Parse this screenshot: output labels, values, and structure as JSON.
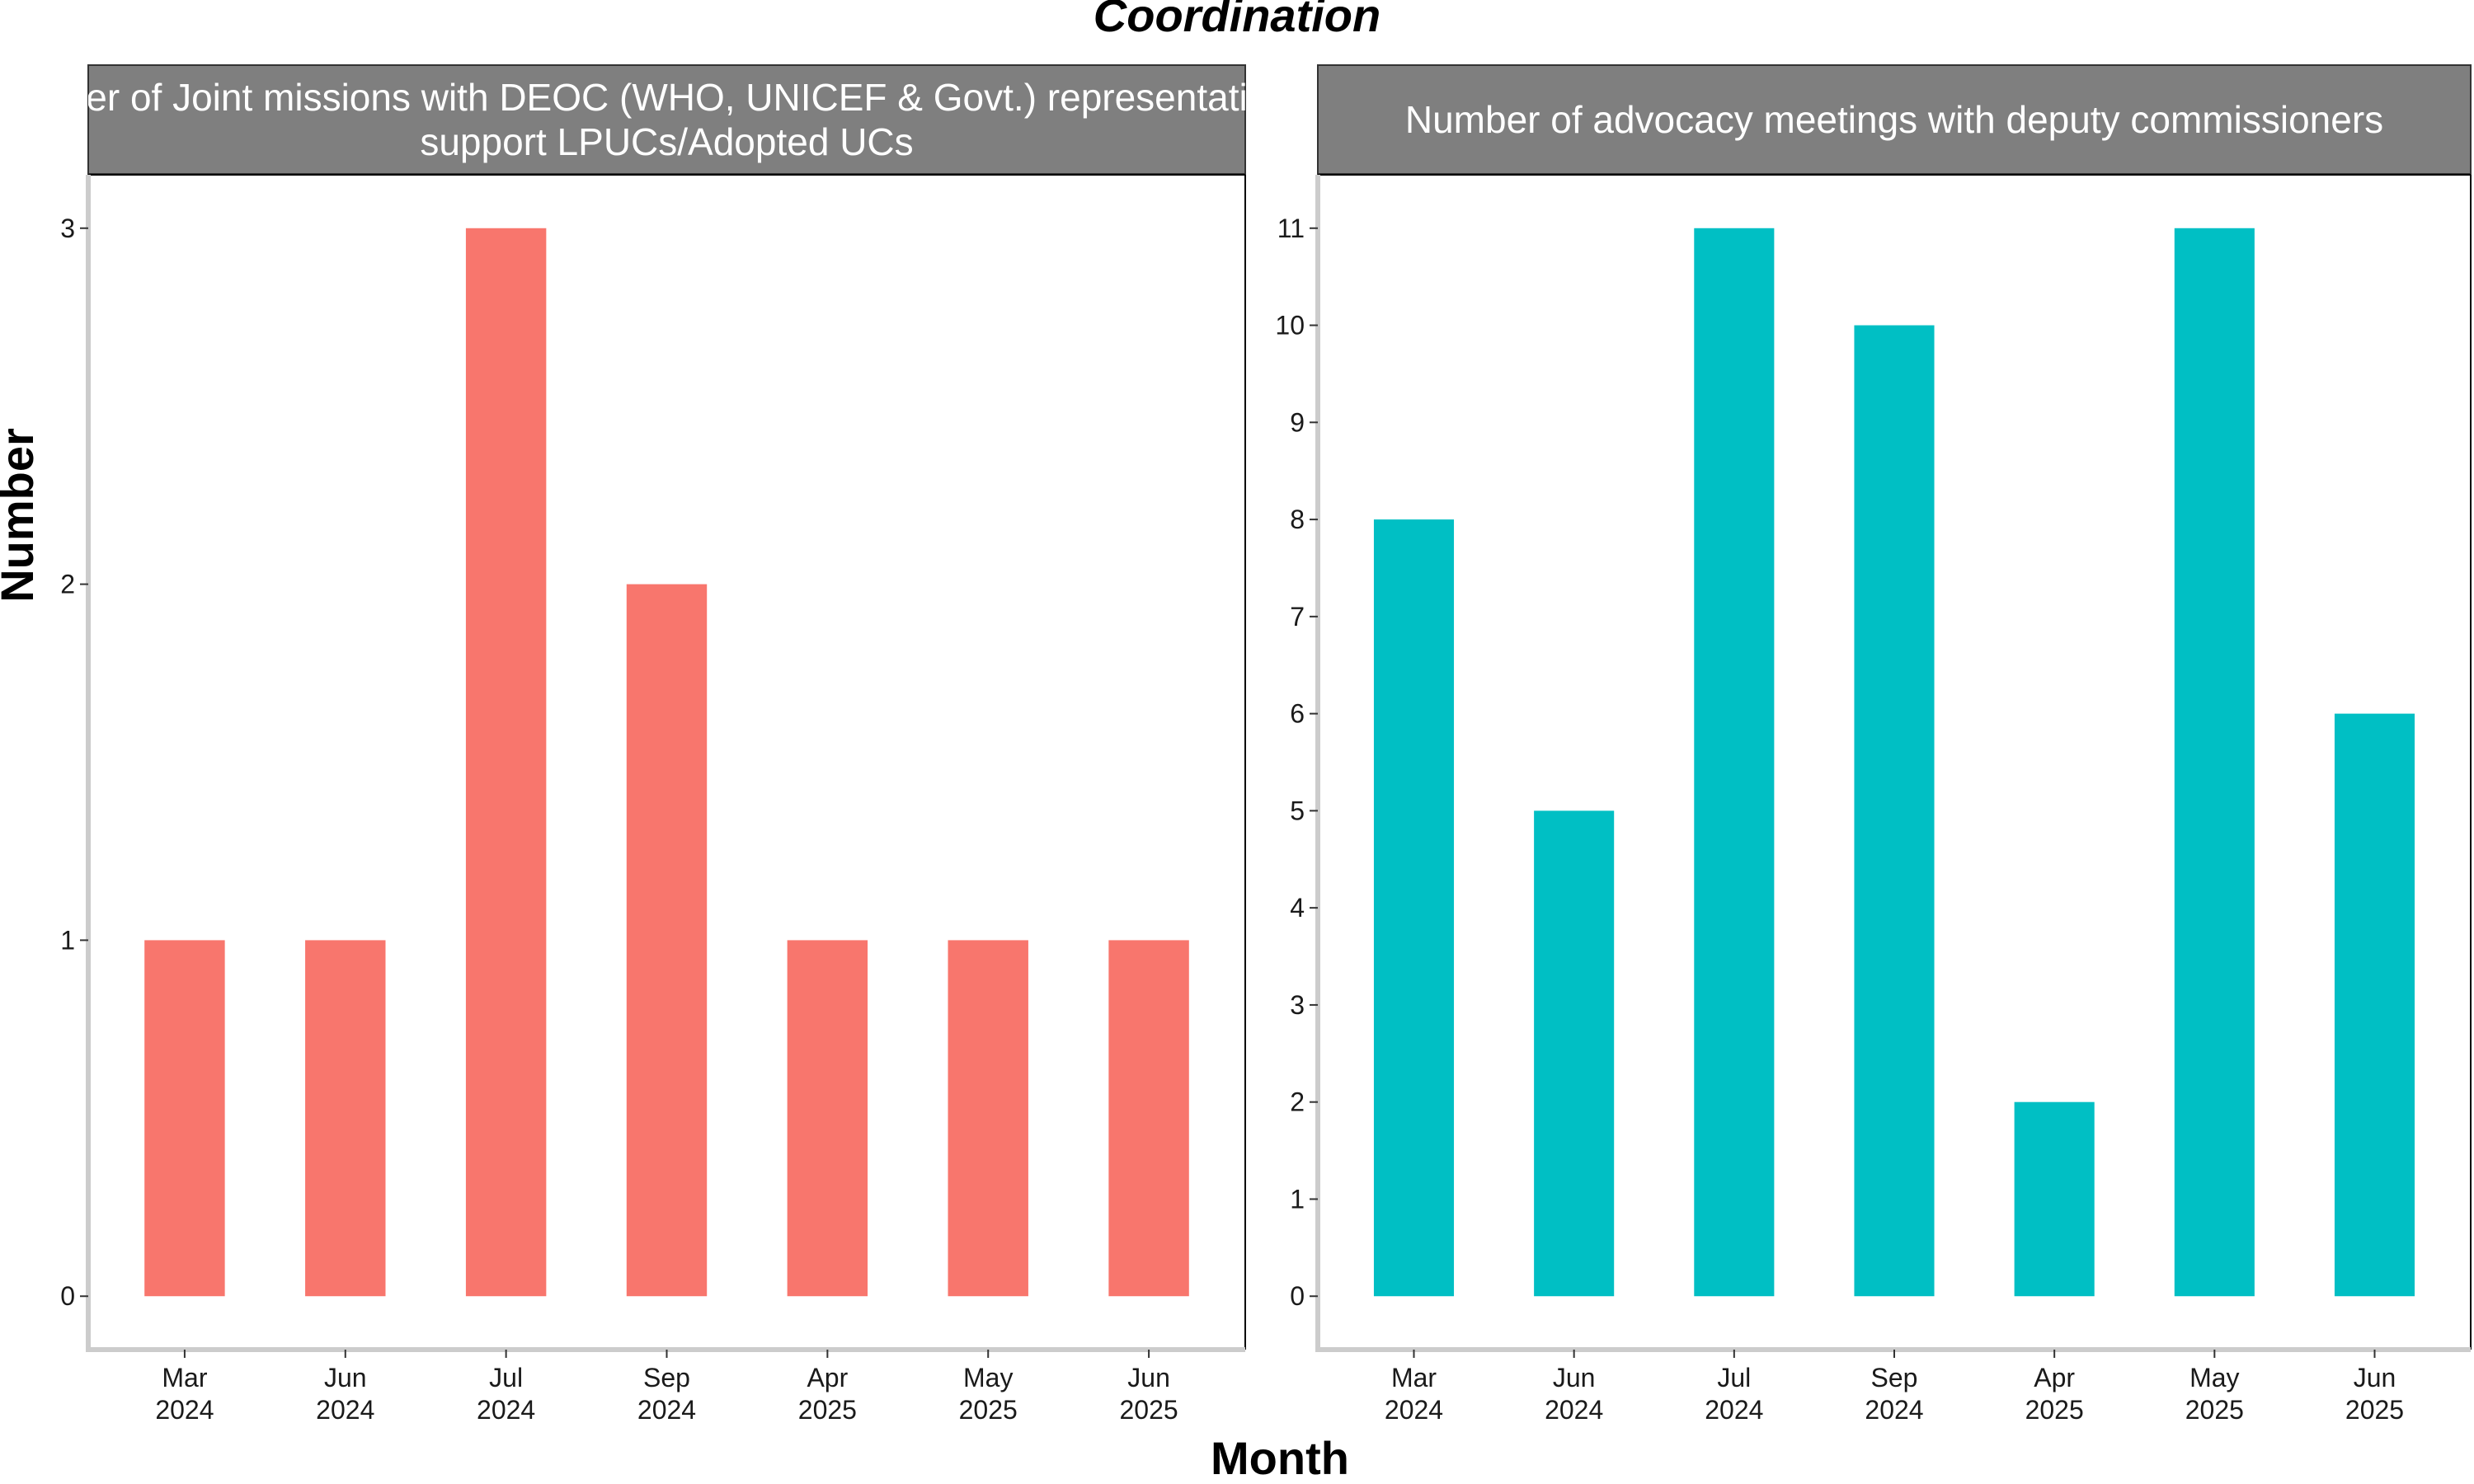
{
  "chart_data": {
    "title": "Coordination",
    "xlabel": "Month",
    "ylabel": "Number",
    "categories": [
      [
        "Mar",
        "2024"
      ],
      [
        "Jun",
        "2024"
      ],
      [
        "Jul",
        "2024"
      ],
      [
        "Sep",
        "2024"
      ],
      [
        "Apr",
        "2025"
      ],
      [
        "May",
        "2025"
      ],
      [
        "Jun",
        "2025"
      ]
    ],
    "panels": [
      {
        "type": "bar",
        "strip_lines": [
          "Number of Joint missions with DEOC (WHO, UNICEF & Govt.) representatives to",
          "support LPUCs/Adopted UCs"
        ],
        "color": "#F8766D",
        "values": [
          1,
          1,
          3,
          2,
          1,
          1,
          1
        ],
        "ylim": [
          -0.15,
          3.15
        ],
        "yticks": [
          0,
          1,
          2,
          3
        ]
      },
      {
        "type": "bar",
        "strip_lines": [
          "Number of advocacy meetings with deputy commissioners"
        ],
        "color": "#00BFC4",
        "values": [
          8,
          5,
          11,
          10,
          2,
          11,
          6
        ],
        "ylim": [
          -0.55,
          11.55
        ],
        "yticks": [
          0,
          1,
          2,
          3,
          4,
          5,
          6,
          7,
          8,
          9,
          10,
          11
        ]
      }
    ],
    "strip_fill": "#7F7F7F",
    "axis_color": "#CCCCCC",
    "grid": false,
    "legend": "none"
  }
}
